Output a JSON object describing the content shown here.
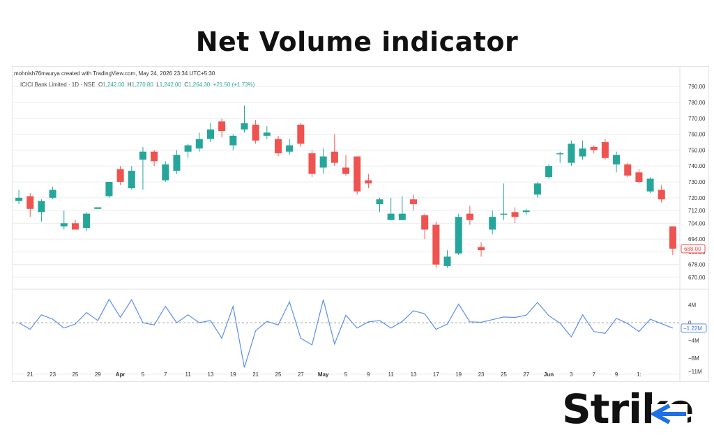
{
  "title": "Net Volume indicator",
  "brand": {
    "name": "Strike"
  },
  "attribution": "mohnish76maurya created with TradingView.com, May 24, 2026 23:34 UTC+5:30",
  "legend": {
    "symbol": "ICICI Bank Limited · 1D · NSE",
    "o_label": "O",
    "o_value": "1,242.00",
    "h_label": "H",
    "h_value": "1,270.80",
    "l_label": "L",
    "l_value": "1,242.00",
    "c_label": "C",
    "c_value": "1,264.30",
    "change": "+21.50 (+1.73%)"
  },
  "colors": {
    "up": "#26a69a",
    "down": "#ef5350",
    "line": "#5b8def",
    "grid": "#ececec",
    "axis_text": "#333333"
  },
  "chart_data": [
    {
      "type": "candlestick",
      "ylim": [
        666,
        794
      ],
      "y_ticks": [
        "790.00",
        "780.00",
        "770.00",
        "760.00",
        "750.00",
        "740.00",
        "730.00",
        "720.00",
        "712.00",
        "704.00",
        "694.00",
        "686.00",
        "678.00",
        "670.00"
      ],
      "y_tick_values": [
        790,
        780,
        770,
        760,
        750,
        740,
        730,
        720,
        712,
        704,
        694,
        686,
        678,
        670
      ],
      "x_ticks": [
        {
          "label": "21",
          "i": 0.5
        },
        {
          "label": "23",
          "i": 2.5
        },
        {
          "label": "25",
          "i": 4.5
        },
        {
          "label": "29",
          "i": 6.5
        },
        {
          "label": "Apr",
          "i": 8.5
        },
        {
          "label": "5",
          "i": 10.5
        },
        {
          "label": "7",
          "i": 12.5
        },
        {
          "label": "11",
          "i": 14.5
        },
        {
          "label": "13",
          "i": 16.5
        },
        {
          "label": "19",
          "i": 18.5
        },
        {
          "label": "21",
          "i": 20.5
        },
        {
          "label": "25",
          "i": 22.5
        },
        {
          "label": "27",
          "i": 24.5
        },
        {
          "label": "May",
          "i": 26.5
        },
        {
          "label": "5",
          "i": 28.5
        },
        {
          "label": "9",
          "i": 30.5
        },
        {
          "label": "11",
          "i": 32.5
        },
        {
          "label": "13",
          "i": 34.5
        },
        {
          "label": "17",
          "i": 36.5
        },
        {
          "label": "19",
          "i": 38.5
        },
        {
          "label": "23",
          "i": 40.5
        },
        {
          "label": "25",
          "i": 42.5
        },
        {
          "label": "27",
          "i": 44.5
        },
        {
          "label": "Jun",
          "i": 46.5
        },
        {
          "label": "3",
          "i": 48.5
        },
        {
          "label": "7",
          "i": 50.5
        },
        {
          "label": "9",
          "i": 52.5
        },
        {
          "label": "1:",
          "i": 54.5
        }
      ],
      "last_price_label": "688.00",
      "candles": [
        {
          "o": 718,
          "h": 725,
          "l": 716,
          "c": 720
        },
        {
          "o": 721,
          "h": 723,
          "l": 708,
          "c": 713
        },
        {
          "o": 711,
          "h": 719,
          "l": 705,
          "c": 718
        },
        {
          "o": 720,
          "h": 727,
          "l": 719,
          "c": 725
        },
        {
          "o": 702,
          "h": 712,
          "l": 700,
          "c": 704
        },
        {
          "o": 704,
          "h": 706,
          "l": 700,
          "c": 700
        },
        {
          "o": 701,
          "h": 711,
          "l": 699,
          "c": 710
        },
        {
          "o": 713,
          "h": 714,
          "l": 713,
          "c": 714
        },
        {
          "o": 721,
          "h": 729,
          "l": 720,
          "c": 730
        },
        {
          "o": 738,
          "h": 740,
          "l": 728,
          "c": 730
        },
        {
          "o": 726,
          "h": 740,
          "l": 725,
          "c": 737
        },
        {
          "o": 744,
          "h": 752,
          "l": 725,
          "c": 749
        },
        {
          "o": 749,
          "h": 750,
          "l": 740,
          "c": 743
        },
        {
          "o": 731,
          "h": 743,
          "l": 730,
          "c": 741
        },
        {
          "o": 737,
          "h": 750,
          "l": 735,
          "c": 747
        },
        {
          "o": 749,
          "h": 754,
          "l": 745,
          "c": 753
        },
        {
          "o": 751,
          "h": 761,
          "l": 749,
          "c": 757
        },
        {
          "o": 757,
          "h": 767,
          "l": 755,
          "c": 763
        },
        {
          "o": 768,
          "h": 770,
          "l": 758,
          "c": 762
        },
        {
          "o": 753,
          "h": 760,
          "l": 750,
          "c": 759
        },
        {
          "o": 763,
          "h": 778,
          "l": 761,
          "c": 767
        },
        {
          "o": 766,
          "h": 769,
          "l": 754,
          "c": 756
        },
        {
          "o": 759,
          "h": 765,
          "l": 757,
          "c": 761
        },
        {
          "o": 757,
          "h": 759,
          "l": 746,
          "c": 748
        },
        {
          "o": 749,
          "h": 757,
          "l": 747,
          "c": 753
        },
        {
          "o": 766,
          "h": 767,
          "l": 752,
          "c": 754
        },
        {
          "o": 748,
          "h": 750,
          "l": 733,
          "c": 735
        },
        {
          "o": 739,
          "h": 751,
          "l": 735,
          "c": 746
        },
        {
          "o": 749,
          "h": 760,
          "l": 740,
          "c": 742
        },
        {
          "o": 739,
          "h": 747,
          "l": 734,
          "c": 735
        },
        {
          "o": 746,
          "h": 746,
          "l": 722,
          "c": 724
        },
        {
          "o": 731,
          "h": 735,
          "l": 726,
          "c": 729
        },
        {
          "o": 716,
          "h": 720,
          "l": 711,
          "c": 719
        },
        {
          "o": 706,
          "h": 720,
          "l": 706,
          "c": 710
        },
        {
          "o": 706,
          "h": 721,
          "l": 706,
          "c": 710
        },
        {
          "o": 719,
          "h": 722,
          "l": 712,
          "c": 716
        },
        {
          "o": 709,
          "h": 710,
          "l": 694,
          "c": 700
        },
        {
          "o": 703,
          "h": 705,
          "l": 676,
          "c": 678
        },
        {
          "o": 677,
          "h": 687,
          "l": 676,
          "c": 683
        },
        {
          "o": 685,
          "h": 710,
          "l": 684,
          "c": 708
        },
        {
          "o": 710,
          "h": 715,
          "l": 703,
          "c": 706
        },
        {
          "o": 689,
          "h": 692,
          "l": 683,
          "c": 687
        },
        {
          "o": 700,
          "h": 712,
          "l": 697,
          "c": 708
        },
        {
          "o": 710,
          "h": 729,
          "l": 706,
          "c": 710
        },
        {
          "o": 711,
          "h": 714,
          "l": 704,
          "c": 708
        },
        {
          "o": 711,
          "h": 713,
          "l": 709,
          "c": 712
        },
        {
          "o": 722,
          "h": 730,
          "l": 720,
          "c": 729
        },
        {
          "o": 733,
          "h": 741,
          "l": 732,
          "c": 740
        },
        {
          "o": 748,
          "h": 749,
          "l": 742,
          "c": 748
        },
        {
          "o": 742,
          "h": 756,
          "l": 740,
          "c": 754
        },
        {
          "o": 746,
          "h": 756,
          "l": 744,
          "c": 751
        },
        {
          "o": 752,
          "h": 753,
          "l": 748,
          "c": 750
        },
        {
          "o": 755,
          "h": 757,
          "l": 744,
          "c": 745
        },
        {
          "o": 741,
          "h": 749,
          "l": 736,
          "c": 747
        },
        {
          "o": 741,
          "h": 742,
          "l": 733,
          "c": 734
        },
        {
          "o": 736,
          "h": 738,
          "l": 729,
          "c": 730
        },
        {
          "o": 724,
          "h": 733,
          "l": 723,
          "c": 732
        },
        {
          "o": 725,
          "h": 728,
          "l": 717,
          "c": 719
        },
        {
          "o": 702,
          "h": 702,
          "l": 684,
          "c": 688
        }
      ]
    },
    {
      "type": "line",
      "name": "Net Volume",
      "ylim": [
        -11,
        6
      ],
      "y_ticks": [
        "4M",
        "0",
        "−4M",
        "−8M",
        "−11M"
      ],
      "y_tick_values": [
        4,
        0,
        -4,
        -8,
        -11
      ],
      "last_value_label": "−1.22M",
      "last_value": -1.22,
      "values": [
        0,
        -1.5,
        1.8,
        0.8,
        -1.2,
        -0.3,
        2.3,
        0.5,
        5.3,
        1.2,
        5.2,
        0,
        -0.5,
        3.7,
        0,
        1.8,
        0,
        0.5,
        -3.5,
        3.7,
        -10.1,
        -1.8,
        0.3,
        -0.5,
        4.7,
        -3.5,
        -5,
        5.2,
        -4.8,
        1.7,
        -1.2,
        0.2,
        0.5,
        -1.2,
        0.3,
        2.7,
        2,
        -1.5,
        -0.3,
        4.2,
        0.2,
        0.1,
        0.7,
        1.3,
        1.2,
        1.7,
        4.6,
        1.6,
        -0.1,
        -3.2,
        1.8,
        -2,
        -2.4,
        1,
        -0.2,
        -2,
        0.8,
        -0.2,
        -1.22
      ]
    }
  ]
}
